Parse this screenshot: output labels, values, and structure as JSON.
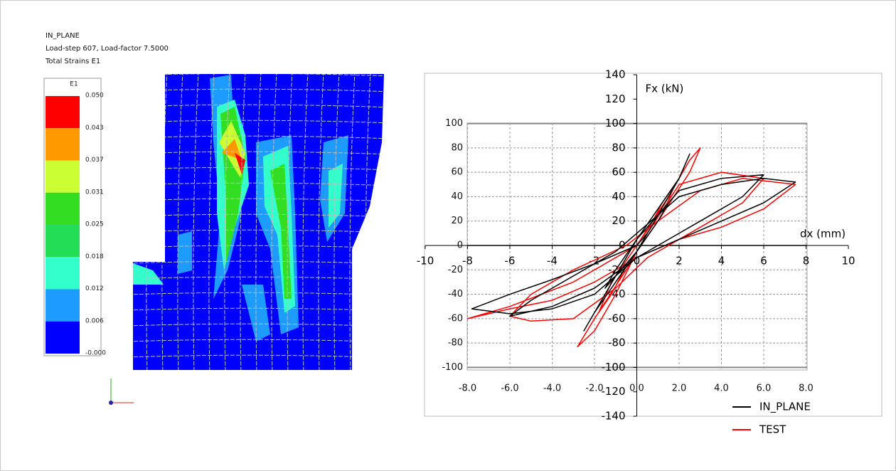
{
  "header": {
    "title": "IN_PLANE",
    "subtitle": "Load-step 607, Load-factor 7.5000",
    "result": "Total Strains E1"
  },
  "contour_legend": {
    "title": "E1",
    "labels": [
      "0.050",
      "0.043",
      "0.037",
      "0.031",
      "0.025",
      "0.018",
      "0.012",
      "0.006",
      "-0.000"
    ]
  },
  "chart_data": {
    "type": "line",
    "x_label": "dx (mm)",
    "y_label": "Fx (kN)",
    "xlim": [
      -10,
      10
    ],
    "xticks": [
      -10,
      -8,
      -6,
      -4,
      -2,
      0,
      2,
      4,
      6,
      8,
      10
    ],
    "ylim": [
      -140,
      140
    ],
    "yticks": [
      -140,
      -120,
      -100,
      -80,
      -60,
      -40,
      -20,
      0,
      20,
      40,
      60,
      80,
      100,
      120,
      140
    ],
    "inner_xticks": [
      {
        "value": -8,
        "label": "-8.0"
      },
      {
        "value": -6,
        "label": "-6.0"
      },
      {
        "value": -4,
        "label": "-4.0"
      },
      {
        "value": -2,
        "label": "-2.0"
      },
      {
        "value": 0,
        "label": "0.0"
      },
      {
        "value": 2,
        "label": "2.0"
      },
      {
        "value": 4,
        "label": "4.0"
      },
      {
        "value": 6,
        "label": "6.0"
      },
      {
        "value": 8,
        "label": "8.0"
      }
    ],
    "inner_yticks": [
      -100,
      -80,
      -60,
      -40,
      -20,
      0,
      20,
      40,
      60,
      80,
      100
    ],
    "legend": "lower right",
    "series": [
      {
        "name": "IN_PLANE",
        "color": "#000000",
        "x": [
          0,
          0.5,
          1,
          1.5,
          1,
          0,
          -0.5,
          -1,
          -1.5,
          -1,
          0,
          1,
          2,
          2.5,
          2,
          1,
          0,
          -1,
          -2,
          -2.5,
          -2,
          -1,
          0,
          2,
          4,
          6,
          5,
          3,
          1,
          0,
          -2,
          -4,
          -6,
          -5,
          -3,
          -1,
          0,
          2,
          4,
          6,
          7.5,
          6,
          4,
          2,
          0,
          -2,
          -4,
          -6,
          -7.8,
          -6,
          -4,
          -2,
          0
        ],
        "values": [
          0,
          10,
          25,
          35,
          20,
          -5,
          -15,
          -25,
          -35,
          -20,
          5,
          30,
          55,
          75,
          55,
          25,
          -5,
          -30,
          -55,
          -70,
          -55,
          -25,
          5,
          45,
          55,
          58,
          40,
          20,
          0,
          -10,
          -35,
          -50,
          -58,
          -45,
          -25,
          -5,
          10,
          40,
          50,
          55,
          52,
          35,
          20,
          5,
          -10,
          -40,
          -52,
          -56,
          -52,
          -40,
          -28,
          -15,
          0
        ]
      },
      {
        "name": "TEST",
        "color": "#ff0000",
        "x": [
          0,
          0.6,
          1.2,
          1.8,
          1.2,
          0,
          -0.6,
          -1.2,
          -1.8,
          -1.2,
          0,
          1.5,
          2.5,
          3,
          2.5,
          1,
          0,
          -1,
          -2,
          -2.8,
          -2,
          -0.5,
          0.5,
          2,
          4,
          6,
          5,
          3,
          0.5,
          -1,
          -3,
          -5,
          -6,
          -5,
          -3,
          -0.5,
          1,
          3,
          5,
          7.5,
          6,
          4,
          2,
          0,
          -2,
          -4,
          -6,
          -8,
          -6,
          -3,
          0
        ],
        "values": [
          0,
          15,
          35,
          50,
          25,
          -5,
          -20,
          -40,
          -55,
          -30,
          0,
          40,
          70,
          80,
          60,
          20,
          -5,
          -40,
          -70,
          -83,
          -60,
          -20,
          10,
          50,
          60,
          55,
          35,
          15,
          -10,
          -35,
          -60,
          -62,
          -58,
          -40,
          -20,
          0,
          20,
          45,
          55,
          50,
          30,
          15,
          5,
          -10,
          -30,
          -45,
          -52,
          -60,
          -50,
          -30,
          0
        ]
      }
    ]
  }
}
